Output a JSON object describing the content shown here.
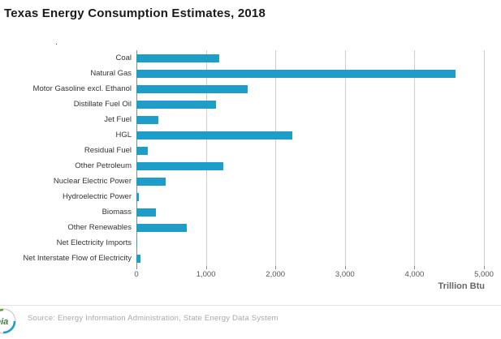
{
  "header": {
    "title": "Texas Energy Consumption Estimates, 2018",
    "stray_dot": "."
  },
  "chart_data": {
    "type": "bar",
    "orientation": "horizontal",
    "title": "Texas Energy Consumption Estimates, 2018",
    "categories": [
      "Coal",
      "Natural Gas",
      "Motor Gasoline excl. Ethanol",
      "Distillate Fuel Oil",
      "Jet Fuel",
      "HGL",
      "Residual Fuel",
      "Other Petroleum",
      "Nuclear Electric Power",
      "Hydroelectric Power",
      "Biomass",
      "Other Renewables",
      "Net Electricity Imports",
      "Net Interstate Flow of Electricity"
    ],
    "values": [
      1190,
      4590,
      1600,
      1145,
      315,
      2245,
      165,
      1250,
      420,
      30,
      280,
      725,
      15,
      60
    ],
    "xlim": [
      0,
      5000
    ],
    "ticks": [
      0,
      1000,
      2000,
      3000,
      4000,
      5000
    ],
    "tick_labels": [
      "0",
      "1,000",
      "2,000",
      "3,000",
      "4,000",
      "5,000"
    ],
    "xlabel": "Trillion Btu",
    "bar_color": "#1e9dc8",
    "grid": true,
    "legend": false
  },
  "footer": {
    "logo_text": "eia",
    "source": "Source: Energy Information Administration, State Energy Data System"
  }
}
